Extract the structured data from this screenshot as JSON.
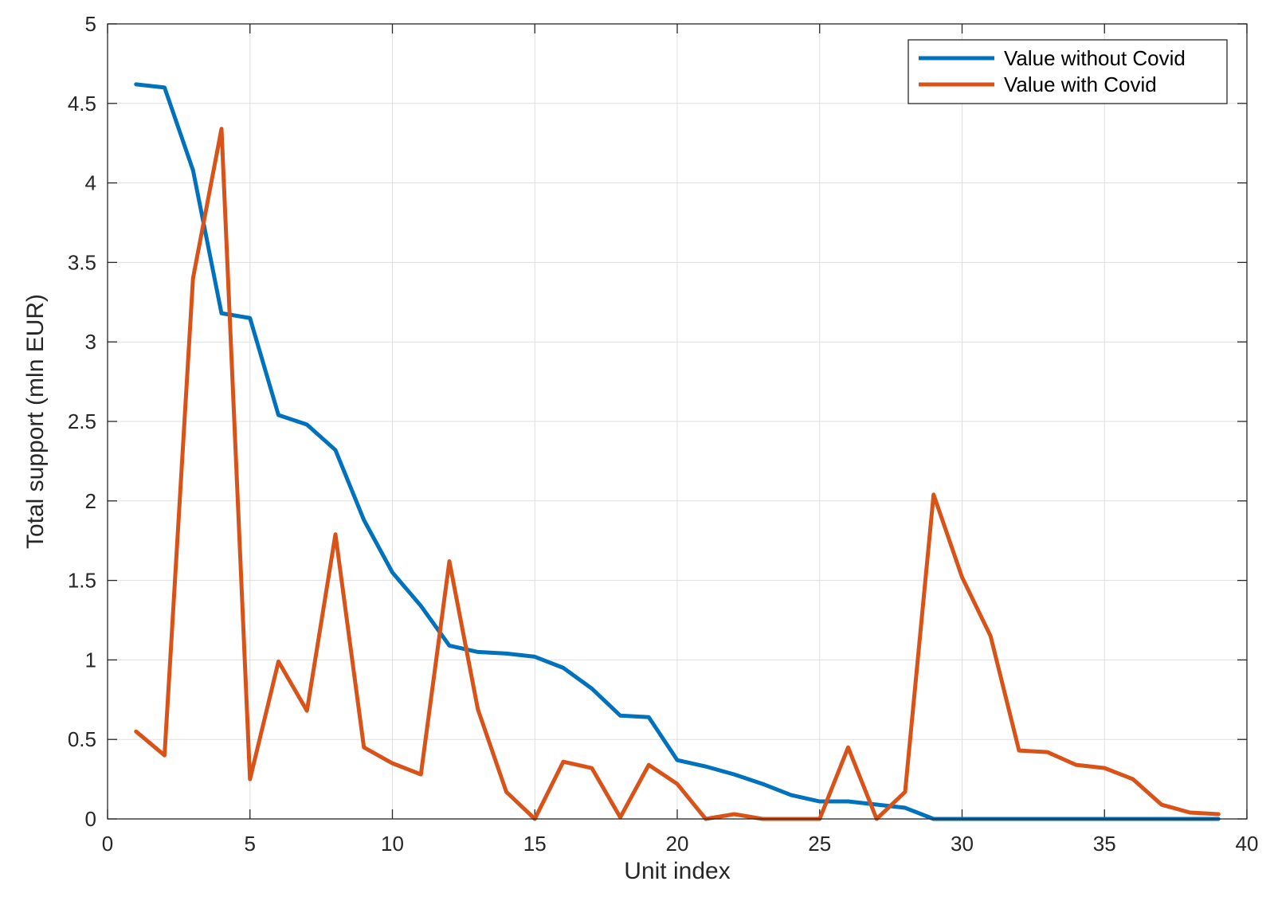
{
  "chart_data": {
    "type": "line",
    "title": "",
    "xlabel": "Unit index",
    "ylabel": "Total support (mln EUR)",
    "xlim": [
      0,
      40
    ],
    "ylim": [
      0,
      5
    ],
    "xticks": [
      0,
      5,
      10,
      15,
      20,
      25,
      30,
      35,
      40
    ],
    "yticks": [
      0,
      0.5,
      1,
      1.5,
      2,
      2.5,
      3,
      3.5,
      4,
      4.5,
      5
    ],
    "xtick_labels": [
      "0",
      "5",
      "10",
      "15",
      "20",
      "25",
      "30",
      "35",
      "40"
    ],
    "ytick_labels": [
      "0",
      "0.5",
      "1",
      "1.5",
      "2",
      "2.5",
      "3",
      "3.5",
      "4",
      "4.5",
      "5"
    ],
    "grid": true,
    "legend_position": "top-right",
    "x": [
      1,
      2,
      3,
      4,
      5,
      6,
      7,
      8,
      9,
      10,
      11,
      12,
      13,
      14,
      15,
      16,
      17,
      18,
      19,
      20,
      21,
      22,
      23,
      24,
      25,
      26,
      27,
      28,
      29,
      30,
      31,
      32,
      33,
      34,
      35,
      36,
      37,
      38,
      39
    ],
    "series": [
      {
        "name": "Value without Covid",
        "color": "#0072BD",
        "values": [
          4.62,
          4.6,
          4.08,
          3.18,
          3.15,
          2.54,
          2.48,
          2.32,
          1.88,
          1.55,
          1.34,
          1.09,
          1.05,
          1.04,
          1.02,
          0.95,
          0.82,
          0.65,
          0.64,
          0.37,
          0.33,
          0.28,
          0.22,
          0.15,
          0.11,
          0.11,
          0.09,
          0.07,
          0.0,
          0.0,
          0.0,
          0.0,
          0.0,
          0.0,
          0.0,
          0.0,
          0.0,
          0.0,
          0.0
        ]
      },
      {
        "name": "Value with Covid",
        "color": "#D95319",
        "values": [
          0.55,
          0.4,
          3.4,
          4.34,
          0.25,
          0.99,
          0.68,
          1.79,
          0.45,
          0.35,
          0.28,
          1.62,
          0.69,
          0.17,
          0.0,
          0.36,
          0.32,
          0.01,
          0.34,
          0.22,
          0.0,
          0.03,
          0.0,
          0.0,
          0.0,
          0.45,
          0.0,
          0.17,
          2.04,
          1.52,
          1.15,
          0.43,
          0.42,
          0.34,
          0.32,
          0.25,
          0.09,
          0.04,
          0.03
        ]
      }
    ]
  }
}
